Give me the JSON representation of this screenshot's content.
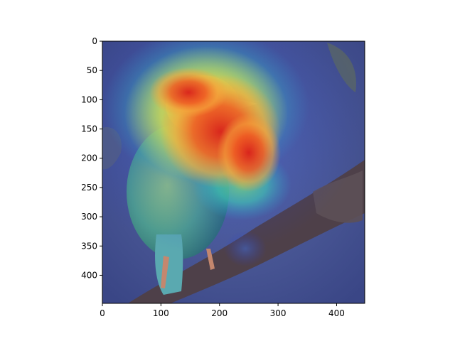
{
  "image": {
    "subject": "bird-on-branch-with-attention-heatmap",
    "colors": {
      "background": "#4a5a96",
      "branch": "#4e4049",
      "bird_head": "#f0a048",
      "bird_body": "#6fb290",
      "heat_hot": "#e5301d",
      "heat_warm": "#f6a33a",
      "heat_mid": "#f2e23e",
      "heat_cool": "#3fd2b5",
      "heat_cold": "#2a3cc8"
    }
  },
  "chart_data": {
    "type": "heatmap",
    "xlim": [
      0,
      448
    ],
    "ylim": [
      448,
      0
    ],
    "x_ticks": [
      0,
      100,
      200,
      300,
      400
    ],
    "y_ticks": [
      0,
      50,
      100,
      150,
      200,
      250,
      300,
      350,
      400
    ],
    "x_tick_labels": [
      "0",
      "100",
      "200",
      "300",
      "400"
    ],
    "y_tick_labels": [
      "0",
      "50",
      "100",
      "150",
      "200",
      "250",
      "300",
      "350",
      "400"
    ],
    "title": "",
    "xlabel": "",
    "ylabel": "",
    "grid": false
  }
}
